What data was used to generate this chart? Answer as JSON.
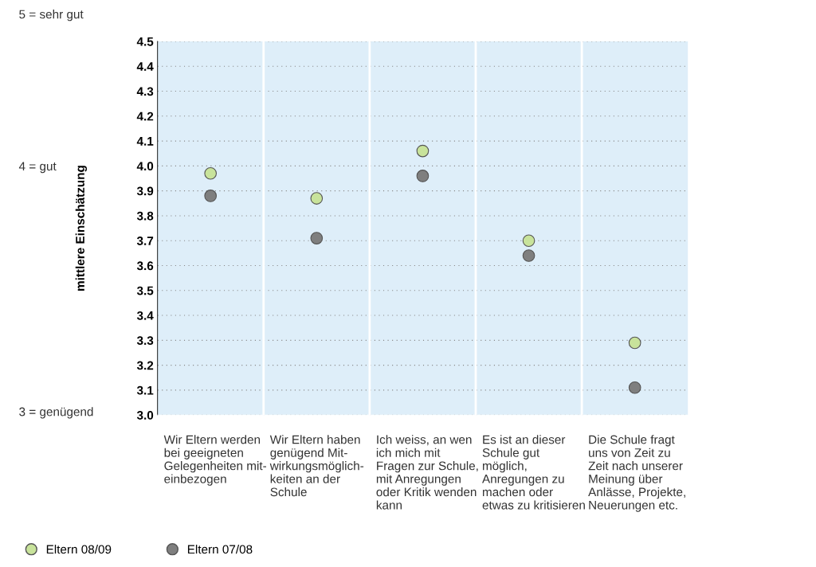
{
  "chart_data": {
    "type": "scatter",
    "ylabel": "mittlere Einschätzung",
    "categories": [
      "Wir Eltern werden\nbei geeigneten\nGelegenheiten mit-\neinbezogen",
      "Wir Eltern haben\ngenügend Mit-\nwirkungsmöglich-\nkeiten an der\nSchule",
      "Ich weiss, an wen\nich mich mit\nFragen zur Schule,\nmit Anregungen\noder Kritik wenden\nkann",
      "Es ist an dieser\nSchule gut\nmöglich,\nAnregungen zu\nmachen oder\netwas zu kritisieren",
      "Die Schule fragt\nuns von Zeit zu\nZeit nach unserer\nMeinung über\nAnlässe, Projekte,\nNeuerungen etc."
    ],
    "series": [
      {
        "name": "Eltern 08/09",
        "color": "#c8e39b",
        "values": [
          3.97,
          3.87,
          4.06,
          3.7,
          3.29
        ]
      },
      {
        "name": "Eltern 07/08",
        "color": "#7f7f7f",
        "values": [
          3.88,
          3.71,
          3.96,
          3.64,
          3.11
        ]
      }
    ],
    "ylim": [
      3.0,
      4.5
    ],
    "yticks": [
      {
        "value": 3.0,
        "label": "3.0"
      },
      3.1,
      3.2,
      3.3,
      3.4,
      3.5,
      3.6,
      3.7,
      3.8,
      3.9,
      {
        "value": 4.0,
        "label": "4.0"
      },
      4.1,
      4.2,
      4.3,
      4.4,
      4.5
    ],
    "grid": "y",
    "legend": "bottom left",
    "marker": "circle",
    "annotations": [
      "5 = sehr gut",
      "4 = gut",
      "3 = genügend"
    ]
  }
}
